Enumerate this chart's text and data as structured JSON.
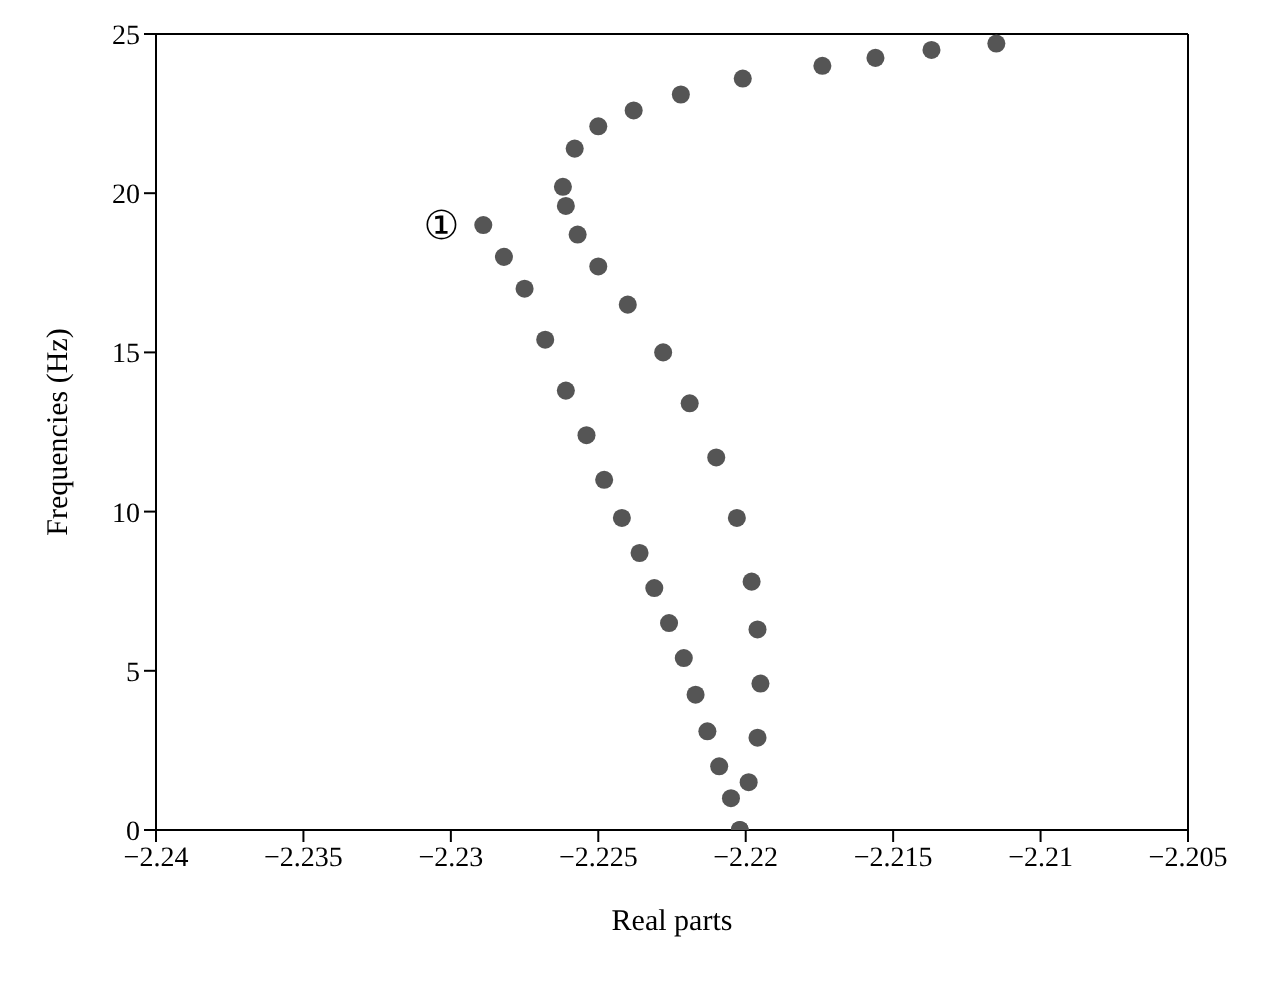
{
  "chart_data": {
    "type": "scatter",
    "xlabel": "Real parts",
    "ylabel": "Frequencies (Hz)",
    "xlim": [
      -2.24,
      -2.205
    ],
    "ylim": [
      0,
      25
    ],
    "xticks": [
      -2.24,
      -2.235,
      -2.23,
      -2.225,
      -2.22,
      -2.215,
      -2.21,
      -2.205
    ],
    "yticks": [
      0,
      5,
      10,
      15,
      20,
      25
    ],
    "marker": "circle",
    "annotations": [
      "①"
    ],
    "series": [
      {
        "color": "#555555",
        "x": [
          -2.2289,
          -2.2282,
          -2.2275,
          -2.2268,
          -2.2261,
          -2.2254,
          -2.2248,
          -2.2242,
          -2.2236,
          -2.2231,
          -2.2226,
          -2.2221,
          -2.2217,
          -2.2213,
          -2.2209,
          -2.2205,
          -2.2202
        ],
        "values": [
          19.0,
          18.0,
          17.0,
          15.4,
          13.8,
          12.4,
          11.0,
          9.8,
          8.7,
          7.6,
          6.5,
          5.4,
          4.25,
          3.1,
          2.0,
          1.0,
          0
        ]
      },
      {
        "color": "#555555",
        "x": [
          -2.2202,
          -2.2199,
          -2.2196,
          -2.2195,
          -2.2196,
          -2.2198,
          -2.2203,
          -2.221,
          -2.2219,
          -2.2228,
          -2.224,
          -2.225,
          -2.2257,
          -2.2261,
          -2.2262,
          -2.2258,
          -2.225,
          -2.2238,
          -2.2222,
          -2.2201,
          -2.2174,
          -2.2156,
          -2.2137,
          -2.2115
        ],
        "values": [
          0,
          1.5,
          2.9,
          4.6,
          6.3,
          7.8,
          9.8,
          11.7,
          13.4,
          15.0,
          16.5,
          17.7,
          18.7,
          19.6,
          20.2,
          21.4,
          22.1,
          22.6,
          23.1,
          23.6,
          24.0,
          24.25,
          24.5,
          24.7
        ]
      }
    ]
  }
}
